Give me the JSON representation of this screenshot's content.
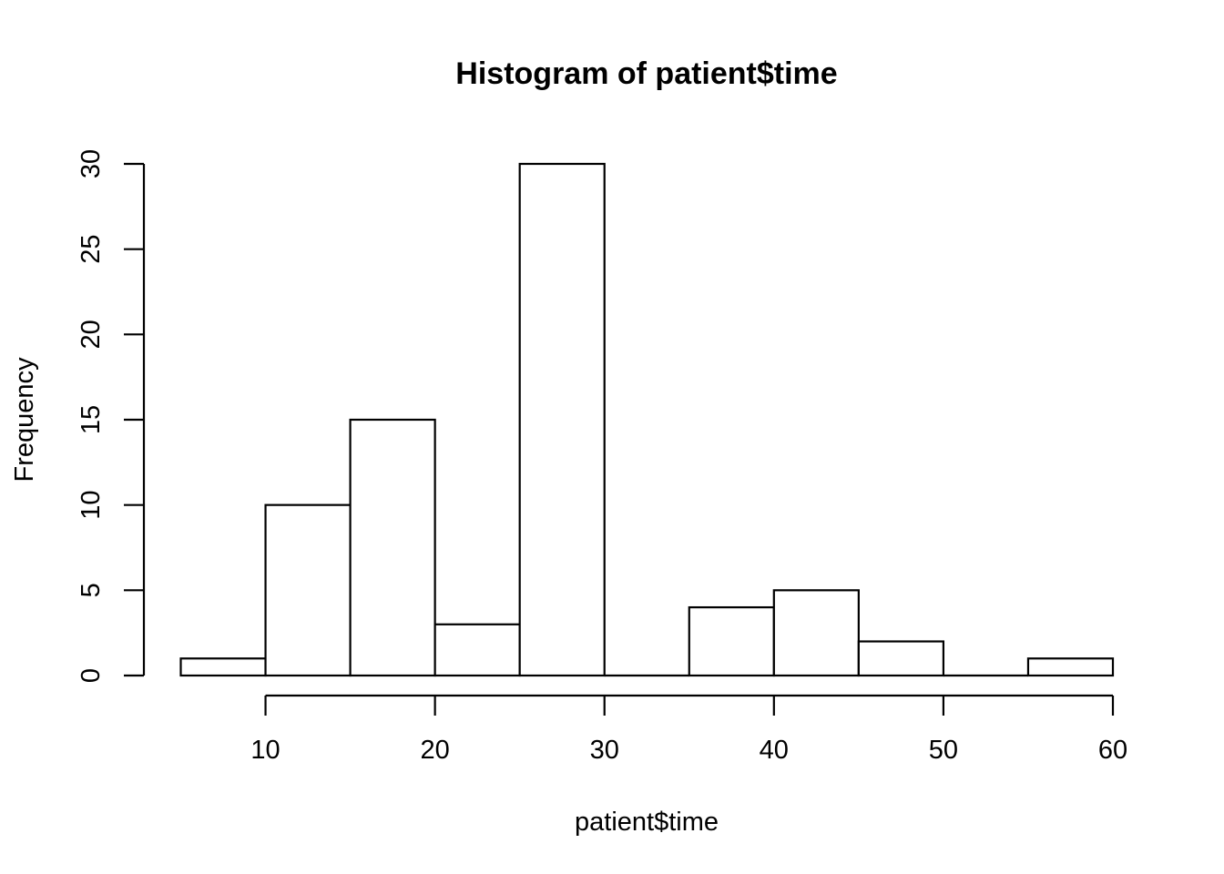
{
  "chart_data": {
    "type": "bar",
    "title": "Histogram of patient$time",
    "xlabel": "patient$time",
    "ylabel": "Frequency",
    "bins": [
      {
        "from": 5,
        "to": 10,
        "count": 1
      },
      {
        "from": 10,
        "to": 15,
        "count": 10
      },
      {
        "from": 15,
        "to": 20,
        "count": 15
      },
      {
        "from": 20,
        "to": 25,
        "count": 3
      },
      {
        "from": 25,
        "to": 30,
        "count": 30
      },
      {
        "from": 30,
        "to": 35,
        "count": 0
      },
      {
        "from": 35,
        "to": 40,
        "count": 4
      },
      {
        "from": 40,
        "to": 45,
        "count": 5
      },
      {
        "from": 45,
        "to": 50,
        "count": 2
      },
      {
        "from": 50,
        "to": 55,
        "count": 0
      },
      {
        "from": 55,
        "to": 60,
        "count": 1
      }
    ],
    "xticks": [
      10,
      20,
      30,
      40,
      50,
      60
    ],
    "xtick_labels": [
      "10",
      "20",
      "30",
      "40",
      "50",
      "60"
    ],
    "yticks": [
      0,
      5,
      10,
      15,
      20,
      25,
      30
    ],
    "ytick_labels": [
      "0",
      "5",
      "10",
      "15",
      "20",
      "25",
      "30"
    ],
    "xlim": [
      5,
      60
    ],
    "ylim": [
      0,
      30
    ],
    "grid": false,
    "colors": {
      "bar_fill": "#ffffff",
      "bar_stroke": "#000000",
      "background": "#ffffff"
    }
  }
}
